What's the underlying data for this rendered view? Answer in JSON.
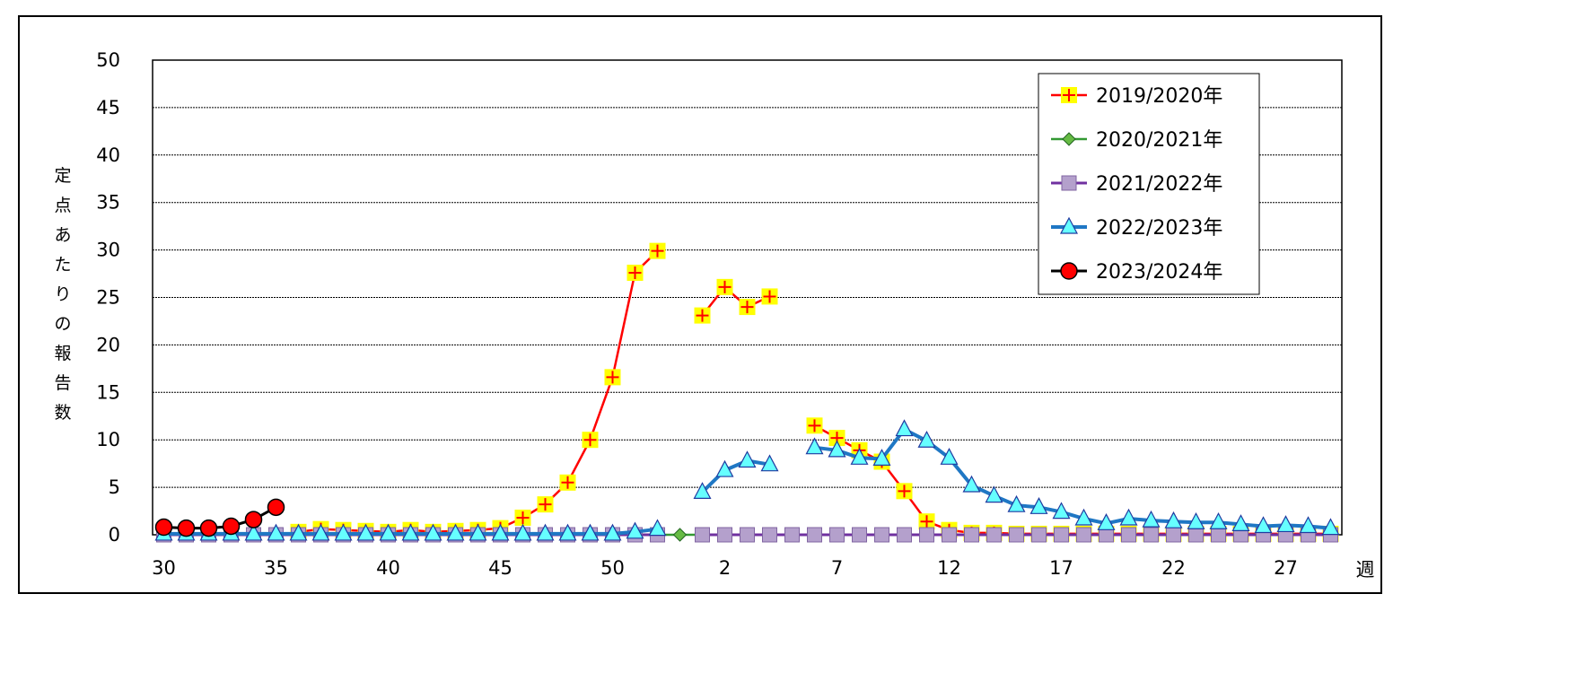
{
  "chart_data": {
    "type": "line",
    "ylabel": "定点あたりの報告数",
    "xlabel": "週",
    "ylim": [
      0,
      50
    ],
    "yticks": [
      0,
      5,
      10,
      15,
      20,
      25,
      30,
      35,
      40,
      45,
      50
    ],
    "x_week_labels": [
      "30",
      "35",
      "40",
      "45",
      "50",
      "2",
      "7",
      "12",
      "17",
      "22",
      "27"
    ],
    "x_weeks": [
      30,
      31,
      32,
      33,
      34,
      35,
      36,
      37,
      38,
      39,
      40,
      41,
      42,
      43,
      44,
      45,
      46,
      47,
      48,
      49,
      50,
      51,
      52,
      53,
      1,
      2,
      3,
      4,
      5,
      6,
      7,
      8,
      9,
      10,
      11,
      12,
      13,
      14,
      15,
      16,
      17,
      18,
      19,
      20,
      21,
      22,
      23,
      24,
      25,
      26,
      27,
      28,
      29
    ],
    "grid": "horizontal dashed",
    "legend_position": "top-right",
    "series": [
      {
        "name": "2019/2020年",
        "color": "#ff0000",
        "marker": "square-plus-yellow",
        "values": [
          null,
          null,
          null,
          null,
          null,
          null,
          0.3,
          0.6,
          0.5,
          0.4,
          0.3,
          0.5,
          0.3,
          0.4,
          0.5,
          0.7,
          1.8,
          3.2,
          5.5,
          10.0,
          16.6,
          27.6,
          29.9,
          null,
          23.1,
          26.1,
          24.0,
          25.1,
          null,
          11.5,
          10.2,
          8.9,
          7.7,
          4.6,
          1.4,
          0.5,
          0.2,
          0.2,
          0.1,
          0.1,
          0.1,
          0.1,
          0.1,
          0.1,
          0.1,
          0.1,
          0.1,
          0.1,
          0.1,
          0.1,
          0.1,
          0.1,
          0.1
        ]
      },
      {
        "name": "2020/2021年",
        "color": "#339933",
        "marker": "diamond-green",
        "values": [
          0,
          0,
          0,
          0,
          0,
          0,
          0,
          0,
          0,
          0,
          0,
          0,
          0,
          0,
          0,
          0,
          0,
          0,
          0,
          0,
          0,
          0,
          0,
          0,
          0,
          0,
          0,
          0,
          0,
          0,
          0,
          0,
          0,
          0,
          0,
          0,
          0,
          0,
          0,
          0,
          0,
          0,
          0,
          0,
          0,
          0,
          0,
          0,
          0,
          0,
          0,
          0,
          0
        ]
      },
      {
        "name": "2021/2022年",
        "color": "#7030a0",
        "marker": "square-purple",
        "values": [
          0,
          0,
          0,
          0,
          0,
          0,
          0,
          0,
          0,
          0,
          0,
          0,
          0,
          0,
          0,
          0,
          0,
          0,
          0,
          0,
          0,
          0,
          0,
          null,
          0,
          0,
          0,
          0,
          0,
          0,
          0,
          0,
          0,
          0,
          0,
          0,
          0,
          0,
          0,
          0,
          0,
          0,
          0,
          0,
          0,
          0,
          0,
          0,
          0,
          0,
          0,
          0,
          0
        ]
      },
      {
        "name": "2022/2023年",
        "color": "#1f77c4",
        "marker": "triangle-cyan",
        "values": [
          0.1,
          0.1,
          0.1,
          0.1,
          0.1,
          0.1,
          0.1,
          0.1,
          0.1,
          0.1,
          0.1,
          0.1,
          0.1,
          0.1,
          0.1,
          0.1,
          0.1,
          0.1,
          0.1,
          0.1,
          0.1,
          0.3,
          0.6,
          null,
          4.5,
          6.8,
          7.8,
          7.4,
          null,
          9.2,
          8.9,
          8.1,
          8.0,
          11.1,
          9.9,
          8.1,
          5.2,
          4.1,
          3.1,
          2.9,
          2.4,
          1.7,
          1.2,
          1.7,
          1.5,
          1.4,
          1.3,
          1.3,
          1.1,
          0.9,
          1.0,
          0.9,
          0.7
        ]
      },
      {
        "name": "2023/2024年",
        "color": "#000000",
        "marker": "circle-red",
        "values": [
          0.8,
          0.7,
          0.7,
          0.9,
          1.6,
          2.9
        ]
      }
    ]
  }
}
